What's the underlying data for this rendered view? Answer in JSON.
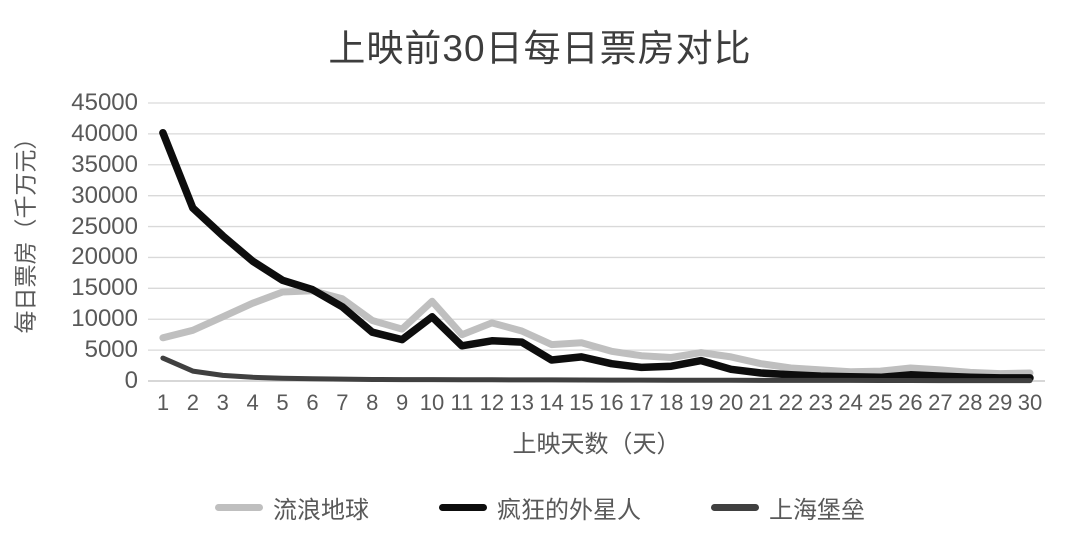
{
  "chart_data": {
    "type": "line",
    "title": "上映前30日每日票房对比",
    "xlabel": "上映天数（天）",
    "ylabel": "每日票房（千万元）",
    "x": [
      1,
      2,
      3,
      4,
      5,
      6,
      7,
      8,
      9,
      10,
      11,
      12,
      13,
      14,
      15,
      16,
      17,
      18,
      19,
      20,
      21,
      22,
      23,
      24,
      25,
      26,
      27,
      28,
      29,
      30
    ],
    "ylim": [
      0,
      45000
    ],
    "yticks": [
      0,
      5000,
      10000,
      15000,
      20000,
      25000,
      30000,
      35000,
      40000,
      45000
    ],
    "grid": true,
    "legend_position": "bottom",
    "series": [
      {
        "name": "流浪地球",
        "color": "#bfbfbf",
        "values": [
          7000,
          8200,
          10400,
          12600,
          14400,
          14600,
          13300,
          9800,
          8400,
          12900,
          7500,
          9400,
          8100,
          5900,
          6200,
          4800,
          4100,
          3800,
          4600,
          3900,
          2800,
          2100,
          1800,
          1500,
          1600,
          2100,
          1800,
          1400,
          1200,
          1300
        ]
      },
      {
        "name": "疯狂的外星人",
        "color": "#0d0d0d",
        "values": [
          40200,
          28000,
          23500,
          19400,
          16300,
          14800,
          12000,
          7900,
          6700,
          10400,
          5700,
          6500,
          6300,
          3400,
          3900,
          2800,
          2200,
          2400,
          3300,
          1900,
          1300,
          1000,
          800,
          700,
          600,
          1000,
          800,
          600,
          500,
          500
        ]
      },
      {
        "name": "上海堡垒",
        "color": "#404040",
        "values": [
          3700,
          1600,
          900,
          600,
          450,
          350,
          300,
          250,
          230,
          220,
          200,
          190,
          180,
          170,
          160,
          150,
          140,
          130,
          120,
          110,
          100,
          100,
          90,
          90,
          80,
          80,
          70,
          70,
          60,
          60
        ]
      }
    ],
    "gridline_color": "#d9d9d9",
    "axis_line_color": "#bfbfbf"
  }
}
